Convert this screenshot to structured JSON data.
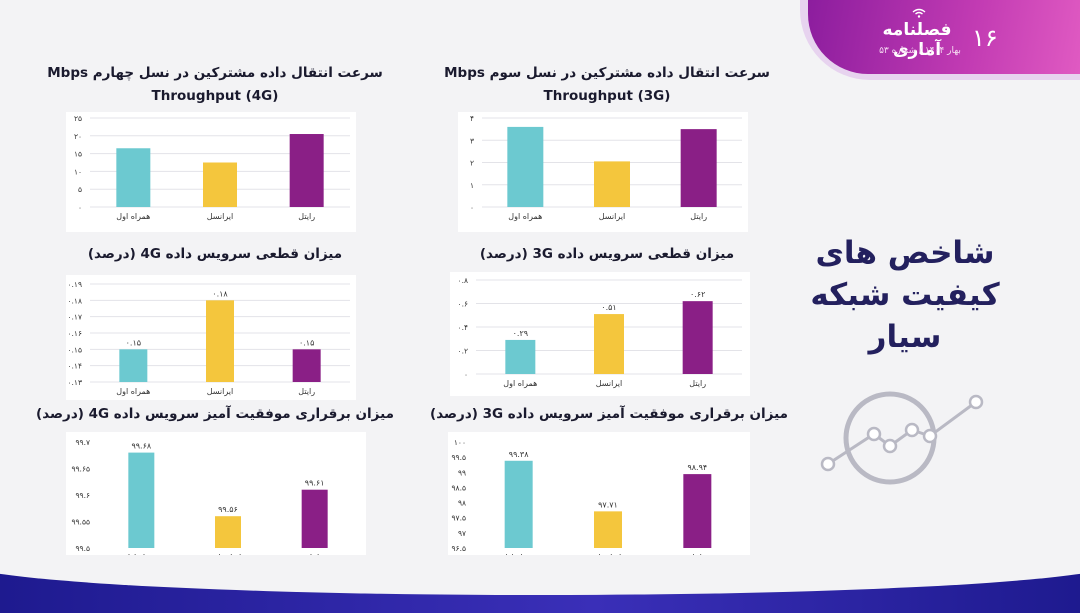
{
  "header": {
    "brand": "فصلنامه آماری",
    "subtitle": "بهار ۱۴۰۴ / شماره ۵۳",
    "page_number": "۱۶"
  },
  "main_title": [
    "شاخص های",
    "کیفیت شبکه",
    "سیار"
  ],
  "colors": {
    "footer": "#2a22a8",
    "badge": "#b12fae",
    "bar_cyan": "#6cc9d0",
    "bar_yellow": "#f4c63d",
    "bar_purple": "#8a1f86"
  },
  "chart_data": [
    {
      "id": "thr4g",
      "type": "bar",
      "title": "سرعت انتقال داده مشترکین در نسل چهارم Mbps Throughput (4G)",
      "title_lines": [
        "سرعت انتقال داده مشترکین در نسل چهارم Mbps",
        "Throughput (4G)"
      ],
      "categories": [
        "همراه اول",
        "ایرانسل",
        "رایتل"
      ],
      "values": [
        16.5,
        12.5,
        20.5
      ],
      "ylim": [
        0,
        25
      ],
      "yticks": [
        "۰",
        "۵",
        "۱۰",
        "۱۵",
        "۲۰",
        "۲۵"
      ],
      "data_labels": [
        "",
        "",
        ""
      ],
      "grid": true
    },
    {
      "id": "thr3g",
      "type": "bar",
      "title": "سرعت انتقال داده مشترکین در نسل سوم Mbps Throughput (3G)",
      "title_lines": [
        "سرعت انتقال داده مشترکین در نسل سوم Mbps",
        "Throughput (3G)"
      ],
      "categories": [
        "همراه اول",
        "ایرانسل",
        "رایتل"
      ],
      "values": [
        3.6,
        2.05,
        3.5
      ],
      "ylim": [
        0,
        4
      ],
      "yticks": [
        "۰",
        "۱",
        "۲",
        "۳",
        "۴"
      ],
      "data_labels": [
        "",
        "",
        ""
      ],
      "grid": true
    },
    {
      "id": "drop4g",
      "type": "bar",
      "title": "میزان قطعی سرویس داده 4G (درصد)",
      "title_lines": [
        "میزان قطعی سرویس داده 4G (درصد)"
      ],
      "categories": [
        "همراه اول",
        "ایرانسل",
        "رایتل"
      ],
      "values": [
        0.15,
        0.18,
        0.15
      ],
      "ylim": [
        0.13,
        0.19
      ],
      "yticks": [
        "۰.۱۳",
        "۰.۱۴",
        "۰.۱۵",
        "۰.۱۶",
        "۰.۱۷",
        "۰.۱۸",
        "۰.۱۹"
      ],
      "data_labels": [
        "۰.۱۵",
        "۰.۱۸",
        "۰.۱۵"
      ],
      "grid": true
    },
    {
      "id": "drop3g",
      "type": "bar",
      "title": "میزان قطعی سرویس داده 3G (درصد)",
      "title_lines": [
        "میزان قطعی سرویس داده 3G (درصد)"
      ],
      "categories": [
        "همراه اول",
        "ایرانسل",
        "رایتل"
      ],
      "values": [
        0.29,
        0.51,
        0.62
      ],
      "ylim": [
        0,
        0.8
      ],
      "yticks": [
        "۰",
        "۰.۲",
        "۰.۴",
        "۰.۶",
        "۰.۸"
      ],
      "data_labels": [
        "۰.۲۹",
        "۰.۵۱",
        "۰.۶۲"
      ],
      "grid": true
    },
    {
      "id": "succ4g",
      "type": "bar",
      "title": "میزان برقراری موفقیت آمیز سرویس داده 4G (درصد)",
      "title_lines": [
        "میزان برقراری موفقیت آمیز سرویس داده 4G (درصد)"
      ],
      "categories": [
        "همراه اول",
        "ایرانسل",
        "رایتل"
      ],
      "values": [
        99.68,
        99.56,
        99.61
      ],
      "ylim": [
        99.5,
        99.7
      ],
      "yticks": [
        "۹۹.۵",
        "۹۹.۵۵",
        "۹۹.۶",
        "۹۹.۶۵",
        "۹۹.۷"
      ],
      "data_labels": [
        "۹۹.۶۸",
        "۹۹.۵۶",
        "۹۹.۶۱"
      ],
      "grid": false
    },
    {
      "id": "succ3g",
      "type": "bar",
      "title": "میزان برقراری موفقیت آمیز سرویس داده 3G (درصد)",
      "title_lines": [
        "میزان برقراری موفقیت آمیز سرویس داده 3G (درصد)"
      ],
      "categories": [
        "همراه اول",
        "ایرانسل",
        "رایتل"
      ],
      "values": [
        99.38,
        97.71,
        98.94
      ],
      "ylim": [
        96.5,
        100
      ],
      "yticks": [
        "۹۶.۵",
        "۹۷",
        "۹۷.۵",
        "۹۸",
        "۹۸.۵",
        "۹۹",
        "۹۹.۵",
        "۱۰۰"
      ],
      "data_labels": [
        "۹۹.۳۸",
        "۹۷.۷۱",
        "۹۸.۹۴"
      ],
      "grid": false
    }
  ]
}
